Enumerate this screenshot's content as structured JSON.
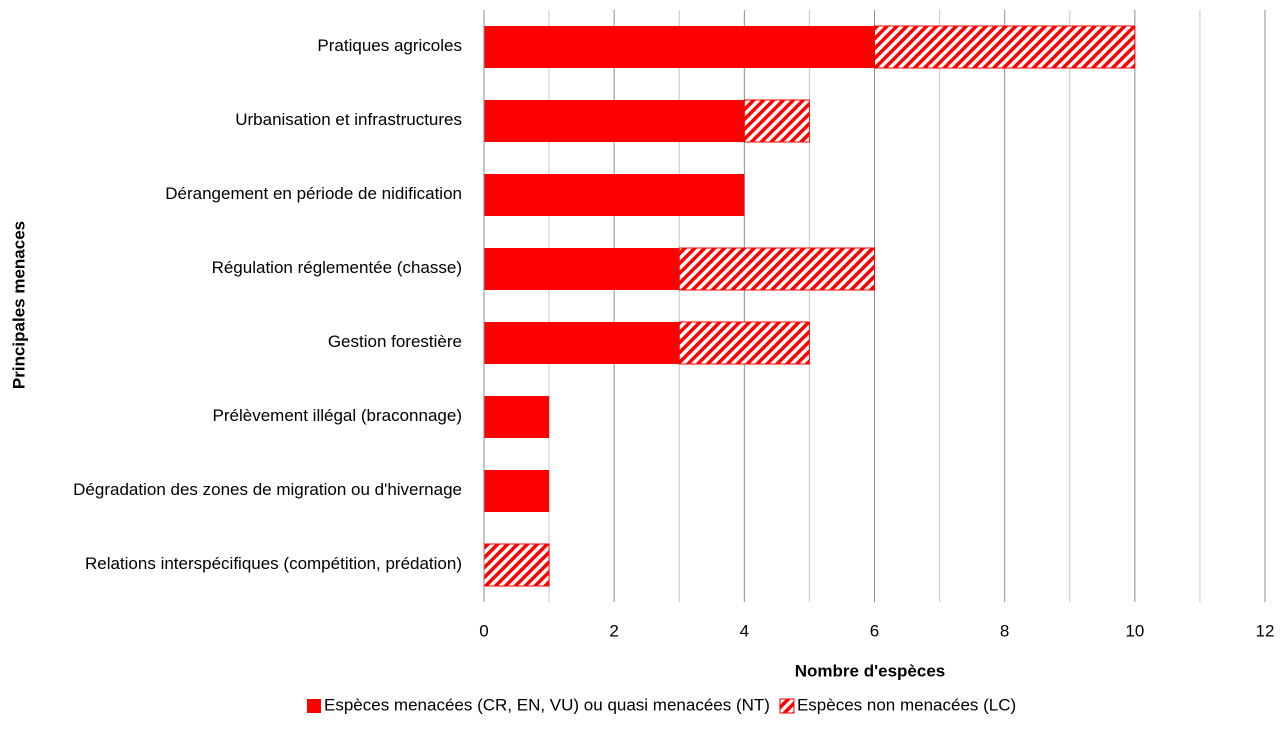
{
  "chart_data": {
    "type": "stacked_barh",
    "categories": [
      "Pratiques agricoles",
      "Urbanisation et infrastructures",
      "Dérangement en période de nidification",
      "Régulation réglementée (chasse)",
      "Gestion forestière",
      "Prélèvement illégal (braconnage)",
      "Dégradation des zones de migration ou d'hivernage",
      "Relations interspécifiques (compétition, prédation)"
    ],
    "series": [
      {
        "name": "Espèces menacées (CR, EN, VU) ou quasi menacées (NT)",
        "color": "#ff0000",
        "hatch": false,
        "values": [
          6,
          4,
          4,
          3,
          3,
          1,
          1,
          0
        ]
      },
      {
        "name": "Espèces non menacées (LC)",
        "color": "#ff0000",
        "hatch": true,
        "values": [
          4,
          1,
          0,
          3,
          2,
          0,
          0,
          1
        ]
      }
    ],
    "xlabel": "Nombre d'espèces",
    "ylabel": "Principales menaces",
    "xlim": [
      0,
      12
    ],
    "xticks": [
      0,
      2,
      4,
      6,
      8,
      10,
      12
    ],
    "minor_xticks": [
      1,
      3,
      5,
      7,
      9,
      11
    ],
    "grid": true,
    "legend": "bottom"
  }
}
